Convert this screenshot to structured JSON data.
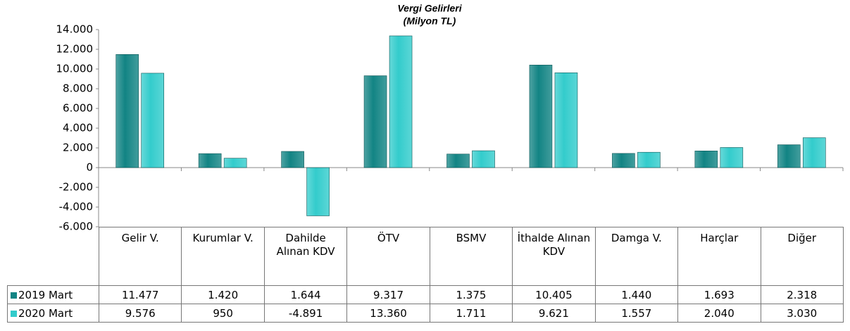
{
  "chart_data": {
    "type": "bar",
    "title": "Vergi Gelirleri",
    "subtitle": "(Milyon TL)",
    "categories": [
      "Gelir V.",
      "Kurumlar V.",
      "Dahilde Alınan KDV",
      "ÖTV",
      "BSMV",
      "İthalde Alınan KDV",
      "Damga V.",
      "Harçlar",
      "Diğer"
    ],
    "series": [
      {
        "name": "2019 Mart",
        "color": "#128484",
        "values": [
          11477,
          1420,
          1644,
          9317,
          1375,
          10405,
          1440,
          1693,
          2318
        ],
        "value_labels": [
          "11.477",
          "1.420",
          "1.644",
          "9.317",
          "1.375",
          "10.405",
          "1.440",
          "1.693",
          "2.318"
        ]
      },
      {
        "name": "2020 Mart",
        "color": "#33cccc",
        "values": [
          9576,
          950,
          -4891,
          13360,
          1711,
          9621,
          1557,
          2040,
          3030
        ],
        "value_labels": [
          "9.576",
          "950",
          "-4.891",
          "13.360",
          "1.711",
          "9.621",
          "1.557",
          "2.040",
          "3.030"
        ]
      }
    ],
    "ylim": [
      -6000,
      14000
    ],
    "yticks": [
      {
        "value": -6000,
        "label": "-6.000"
      },
      {
        "value": -4000,
        "label": "-4.000"
      },
      {
        "value": -2000,
        "label": "-2.000"
      },
      0,
      {
        "value": 2000,
        "label": "2.000"
      },
      {
        "value": 4000,
        "label": "4.000"
      },
      {
        "value": 6000,
        "label": "6.000"
      },
      {
        "value": 8000,
        "label": "8.000"
      },
      {
        "value": 10000,
        "label": "10.000"
      },
      {
        "value": 12000,
        "label": "12.000"
      },
      {
        "value": 14000,
        "label": "14.000"
      }
    ],
    "legend": "table"
  }
}
